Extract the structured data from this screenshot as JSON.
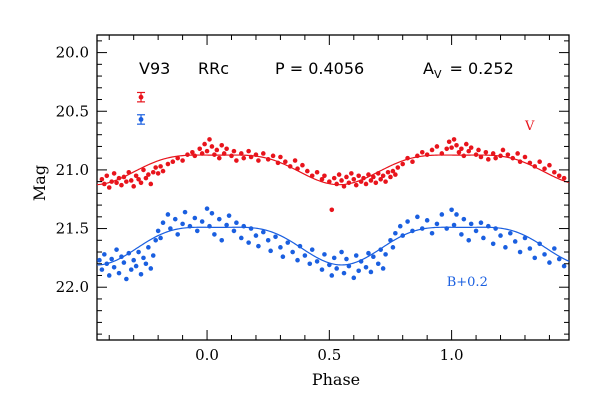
{
  "chart_data": {
    "type": "scatter",
    "xlabel": "Phase",
    "ylabel": "Mag",
    "xlim": [
      -0.45,
      1.48
    ],
    "ylim": [
      22.45,
      19.85
    ],
    "y_inverted": true,
    "xticks": [
      {
        "value": 0.0,
        "label": "0.0"
      },
      {
        "value": 0.5,
        "label": "0.5"
      },
      {
        "value": 1.0,
        "label": "1.0"
      }
    ],
    "yticks": [
      {
        "value": 20.0,
        "label": "20.0"
      },
      {
        "value": 20.5,
        "label": "20.5"
      },
      {
        "value": 21.0,
        "label": "21.0"
      },
      {
        "value": 21.5,
        "label": "21.5"
      },
      {
        "value": 22.0,
        "label": "22.0"
      }
    ],
    "annotations": {
      "star": "V93",
      "type": "RRc",
      "period": "P = 0.4056",
      "amplitude_symbol": "A",
      "amplitude_sub": "V",
      "amplitude_value": "= 0.252"
    },
    "error_bars": [
      {
        "series": "V",
        "x": -0.27,
        "y": 20.38,
        "err": 0.04
      },
      {
        "series": "B+0.2",
        "x": -0.27,
        "y": 20.57,
        "err": 0.04
      }
    ],
    "series": [
      {
        "name": "V",
        "color": "#e8141c",
        "label_x": 1.3,
        "label_y": 20.66,
        "fit": {
          "mean": 20.965,
          "amp": 0.126,
          "phase0": 0.04,
          "harm": 0.035
        },
        "points": [
          [
            -0.43,
            21.08
          ],
          [
            -0.42,
            21.12
          ],
          [
            -0.41,
            21.05
          ],
          [
            -0.4,
            21.15
          ],
          [
            -0.39,
            21.1
          ],
          [
            -0.38,
            21.03
          ],
          [
            -0.37,
            21.11
          ],
          [
            -0.36,
            21.07
          ],
          [
            -0.35,
            21.13
          ],
          [
            -0.34,
            21.06
          ],
          [
            -0.33,
            21.1
          ],
          [
            -0.32,
            21.02
          ],
          [
            -0.31,
            21.09
          ],
          [
            -0.3,
            21.14
          ],
          [
            -0.29,
            21.05
          ],
          [
            -0.28,
            21.08
          ],
          [
            -0.27,
            21.11
          ],
          [
            -0.26,
            21.0
          ],
          [
            -0.25,
            21.07
          ],
          [
            -0.24,
            21.04
          ],
          [
            -0.23,
            21.12
          ],
          [
            -0.22,
            21.02
          ],
          [
            -0.21,
            20.98
          ],
          [
            -0.2,
            21.03
          ],
          [
            -0.19,
            20.97
          ],
          [
            -0.18,
            21.01
          ],
          [
            -0.16,
            20.95
          ],
          [
            -0.14,
            20.93
          ],
          [
            -0.12,
            20.9
          ],
          [
            -0.1,
            20.92
          ],
          [
            -0.08,
            20.87
          ],
          [
            -0.06,
            20.85
          ],
          [
            -0.05,
            20.88
          ],
          [
            -0.03,
            20.82
          ],
          [
            -0.02,
            20.86
          ],
          [
            -0.01,
            20.78
          ],
          [
            0.0,
            20.84
          ],
          [
            0.01,
            20.74
          ],
          [
            0.02,
            20.8
          ],
          [
            0.03,
            20.87
          ],
          [
            0.04,
            20.83
          ],
          [
            0.05,
            20.9
          ],
          [
            0.06,
            20.79
          ],
          [
            0.07,
            20.86
          ],
          [
            0.08,
            20.82
          ],
          [
            0.1,
            20.88
          ],
          [
            0.11,
            20.84
          ],
          [
            0.12,
            20.92
          ],
          [
            0.14,
            20.86
          ],
          [
            0.15,
            20.9
          ],
          [
            0.17,
            20.84
          ],
          [
            0.18,
            20.89
          ],
          [
            0.2,
            20.87
          ],
          [
            0.21,
            20.92
          ],
          [
            0.23,
            20.86
          ],
          [
            0.25,
            20.91
          ],
          [
            0.27,
            20.88
          ],
          [
            0.29,
            20.94
          ],
          [
            0.3,
            20.89
          ],
          [
            0.32,
            20.93
          ],
          [
            0.34,
            20.97
          ],
          [
            0.36,
            20.92
          ],
          [
            0.37,
            20.99
          ],
          [
            0.39,
            20.96
          ],
          [
            0.41,
            21.01
          ],
          [
            0.43,
            21.05
          ],
          [
            0.45,
            21.02
          ],
          [
            0.47,
            21.08
          ],
          [
            0.48,
            21.05
          ],
          [
            0.5,
            21.1
          ],
          [
            0.51,
            21.34
          ],
          [
            0.52,
            21.07
          ],
          [
            0.53,
            21.12
          ],
          [
            0.54,
            21.04
          ],
          [
            0.55,
            21.09
          ],
          [
            0.56,
            21.14
          ],
          [
            0.57,
            21.06
          ],
          [
            0.58,
            21.11
          ],
          [
            0.59,
            21.03
          ],
          [
            0.6,
            21.08
          ],
          [
            0.61,
            21.13
          ],
          [
            0.62,
            21.05
          ],
          [
            0.63,
            21.1
          ],
          [
            0.64,
            21.07
          ],
          [
            0.65,
            21.12
          ],
          [
            0.66,
            21.04
          ],
          [
            0.67,
            21.09
          ],
          [
            0.68,
            21.06
          ],
          [
            0.69,
            21.11
          ],
          [
            0.7,
            21.03
          ],
          [
            0.71,
            21.08
          ],
          [
            0.72,
            21.05
          ],
          [
            0.73,
            21.1
          ],
          [
            0.74,
            21.02
          ],
          [
            0.75,
            21.06
          ],
          [
            0.76,
            21.01
          ],
          [
            0.77,
            21.04
          ],
          [
            0.78,
            20.98
          ],
          [
            0.8,
            20.95
          ],
          [
            0.82,
            20.9
          ],
          [
            0.84,
            20.93
          ],
          [
            0.86,
            20.88
          ],
          [
            0.88,
            20.85
          ],
          [
            0.9,
            20.87
          ],
          [
            0.92,
            20.83
          ],
          [
            0.94,
            20.8
          ],
          [
            0.96,
            20.86
          ],
          [
            0.98,
            20.82
          ],
          [
            0.99,
            20.76
          ],
          [
            1.0,
            20.81
          ],
          [
            1.01,
            20.74
          ],
          [
            1.02,
            20.79
          ],
          [
            1.03,
            20.85
          ],
          [
            1.04,
            20.82
          ],
          [
            1.05,
            20.88
          ],
          [
            1.06,
            20.78
          ],
          [
            1.07,
            20.84
          ],
          [
            1.08,
            20.81
          ],
          [
            1.1,
            20.87
          ],
          [
            1.11,
            20.83
          ],
          [
            1.12,
            20.89
          ],
          [
            1.14,
            20.85
          ],
          [
            1.15,
            20.91
          ],
          [
            1.17,
            20.86
          ],
          [
            1.18,
            20.9
          ],
          [
            1.2,
            20.88
          ],
          [
            1.21,
            20.83
          ],
          [
            1.23,
            20.87
          ],
          [
            1.25,
            20.9
          ],
          [
            1.27,
            20.86
          ],
          [
            1.28,
            20.93
          ],
          [
            1.3,
            20.89
          ],
          [
            1.32,
            20.94
          ],
          [
            1.34,
            20.97
          ],
          [
            1.36,
            20.93
          ],
          [
            1.38,
            20.99
          ],
          [
            1.4,
            20.96
          ],
          [
            1.42,
            21.02
          ],
          [
            1.44,
            21.05
          ],
          [
            1.46,
            21.07
          ]
        ]
      },
      {
        "name": "B+0.2",
        "color": "#1a5fe0",
        "label_x": 0.98,
        "label_y": 21.99,
        "fit": {
          "mean": 21.605,
          "amp": 0.16,
          "phase0": 0.05,
          "harm": 0.045
        },
        "points": [
          [
            -0.44,
            21.77
          ],
          [
            -0.43,
            21.85
          ],
          [
            -0.42,
            21.72
          ],
          [
            -0.41,
            21.8
          ],
          [
            -0.4,
            21.9
          ],
          [
            -0.39,
            21.76
          ],
          [
            -0.38,
            21.83
          ],
          [
            -0.37,
            21.68
          ],
          [
            -0.36,
            21.88
          ],
          [
            -0.35,
            21.74
          ],
          [
            -0.34,
            21.79
          ],
          [
            -0.33,
            21.93
          ],
          [
            -0.32,
            21.71
          ],
          [
            -0.31,
            21.85
          ],
          [
            -0.3,
            21.77
          ],
          [
            -0.29,
            21.82
          ],
          [
            -0.28,
            21.7
          ],
          [
            -0.27,
            21.89
          ],
          [
            -0.26,
            21.75
          ],
          [
            -0.25,
            21.8
          ],
          [
            -0.24,
            21.66
          ],
          [
            -0.23,
            21.84
          ],
          [
            -0.22,
            21.73
          ],
          [
            -0.21,
            21.6
          ],
          [
            -0.2,
            21.52
          ],
          [
            -0.19,
            21.58
          ],
          [
            -0.18,
            21.45
          ],
          [
            -0.16,
            21.38
          ],
          [
            -0.15,
            21.5
          ],
          [
            -0.13,
            21.42
          ],
          [
            -0.12,
            21.55
          ],
          [
            -0.1,
            21.46
          ],
          [
            -0.09,
            21.36
          ],
          [
            -0.07,
            21.48
          ],
          [
            -0.05,
            21.41
          ],
          [
            -0.04,
            21.52
          ],
          [
            -0.02,
            21.44
          ],
          [
            0.0,
            21.33
          ],
          [
            0.01,
            21.48
          ],
          [
            0.02,
            21.37
          ],
          [
            0.03,
            21.55
          ],
          [
            0.05,
            21.42
          ],
          [
            0.06,
            21.6
          ],
          [
            0.08,
            21.47
          ],
          [
            0.09,
            21.39
          ],
          [
            0.11,
            21.52
          ],
          [
            0.12,
            21.45
          ],
          [
            0.14,
            21.58
          ],
          [
            0.15,
            21.48
          ],
          [
            0.17,
            21.62
          ],
          [
            0.18,
            21.5
          ],
          [
            0.2,
            21.56
          ],
          [
            0.21,
            21.65
          ],
          [
            0.23,
            21.53
          ],
          [
            0.25,
            21.6
          ],
          [
            0.26,
            21.69
          ],
          [
            0.28,
            21.57
          ],
          [
            0.3,
            21.66
          ],
          [
            0.31,
            21.74
          ],
          [
            0.33,
            21.62
          ],
          [
            0.35,
            21.7
          ],
          [
            0.37,
            21.77
          ],
          [
            0.38,
            21.65
          ],
          [
            0.4,
            21.73
          ],
          [
            0.42,
            21.8
          ],
          [
            0.43,
            21.68
          ],
          [
            0.45,
            21.78
          ],
          [
            0.47,
            21.85
          ],
          [
            0.48,
            21.72
          ],
          [
            0.5,
            21.81
          ],
          [
            0.51,
            21.9
          ],
          [
            0.52,
            21.75
          ],
          [
            0.53,
            21.84
          ],
          [
            0.55,
            21.7
          ],
          [
            0.56,
            21.88
          ],
          [
            0.57,
            21.76
          ],
          [
            0.58,
            21.82
          ],
          [
            0.6,
            21.92
          ],
          [
            0.61,
            21.73
          ],
          [
            0.62,
            21.86
          ],
          [
            0.63,
            21.78
          ],
          [
            0.65,
            21.83
          ],
          [
            0.66,
            21.71
          ],
          [
            0.67,
            21.87
          ],
          [
            0.68,
            21.74
          ],
          [
            0.7,
            21.8
          ],
          [
            0.71,
            21.68
          ],
          [
            0.72,
            21.84
          ],
          [
            0.73,
            21.72
          ],
          [
            0.75,
            21.6
          ],
          [
            0.76,
            21.66
          ],
          [
            0.77,
            21.54
          ],
          [
            0.79,
            21.48
          ],
          [
            0.8,
            21.56
          ],
          [
            0.82,
            21.44
          ],
          [
            0.84,
            21.52
          ],
          [
            0.86,
            21.4
          ],
          [
            0.88,
            21.5
          ],
          [
            0.9,
            21.43
          ],
          [
            0.92,
            21.54
          ],
          [
            0.94,
            21.46
          ],
          [
            0.96,
            21.38
          ],
          [
            0.98,
            21.5
          ],
          [
            1.0,
            21.34
          ],
          [
            1.01,
            21.47
          ],
          [
            1.02,
            21.38
          ],
          [
            1.04,
            21.55
          ],
          [
            1.05,
            21.42
          ],
          [
            1.07,
            21.6
          ],
          [
            1.08,
            21.46
          ],
          [
            1.1,
            21.52
          ],
          [
            1.12,
            21.45
          ],
          [
            1.13,
            21.58
          ],
          [
            1.15,
            21.48
          ],
          [
            1.17,
            21.63
          ],
          [
            1.18,
            21.5
          ],
          [
            1.2,
            21.56
          ],
          [
            1.22,
            21.66
          ],
          [
            1.24,
            21.54
          ],
          [
            1.26,
            21.61
          ],
          [
            1.28,
            21.7
          ],
          [
            1.3,
            21.58
          ],
          [
            1.32,
            21.67
          ],
          [
            1.34,
            21.75
          ],
          [
            1.36,
            21.63
          ],
          [
            1.38,
            21.72
          ],
          [
            1.4,
            21.79
          ],
          [
            1.42,
            21.67
          ],
          [
            1.44,
            21.76
          ],
          [
            1.46,
            21.82
          ]
        ]
      }
    ]
  }
}
